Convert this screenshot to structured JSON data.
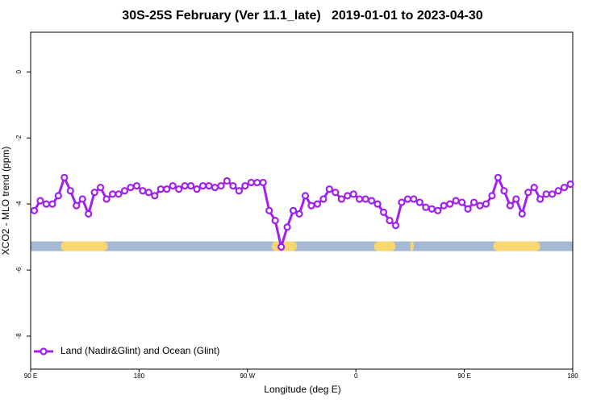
{
  "chart_data": {
    "type": "line",
    "title": "30S-25S February (Ver 11.1_late)   2019-01-01 to 2023-04-30",
    "x_label": "Longitude (deg E)",
    "y_label": "XCO2 - MLO trend (ppm)",
    "xlim": [
      90,
      540
    ],
    "ylim": [
      -9,
      1.2
    ],
    "xticks": [
      {
        "value": 90,
        "label": "90 E"
      },
      180,
      {
        "value": 270,
        "label": "90 W"
      },
      {
        "value": 360,
        "label": "0"
      },
      {
        "value": 450,
        "label": "90 E"
      },
      {
        "value": 540,
        "label": "180"
      }
    ],
    "yticks": [
      0,
      -2,
      -4,
      -6,
      -8
    ],
    "legend": "bottom-left",
    "x": [
      93,
      98,
      103,
      108,
      113,
      118,
      123,
      128,
      133,
      138,
      143,
      148,
      153,
      158,
      163,
      168,
      173,
      178,
      183,
      188,
      193,
      198,
      203,
      208,
      213,
      218,
      223,
      228,
      233,
      238,
      243,
      248,
      253,
      258,
      263,
      268,
      273,
      278,
      283,
      288,
      293,
      298,
      303,
      308,
      313,
      318,
      323,
      328,
      333,
      338,
      343,
      348,
      353,
      358,
      363,
      368,
      373,
      378,
      383,
      388,
      393,
      398,
      403,
      408,
      413,
      418,
      423,
      428,
      433,
      438,
      443,
      448,
      453,
      458,
      463,
      468,
      473,
      478,
      483,
      488,
      493,
      498,
      503,
      508,
      513,
      518,
      523,
      528,
      533,
      538
    ],
    "series": [
      {
        "name": "Land (Nadir&Glint) and Ocean (Glint)",
        "color": "#a020f0",
        "values": [
          -4.2,
          -3.9,
          -4.0,
          -4.0,
          -3.75,
          -3.2,
          -3.6,
          -4.05,
          -3.85,
          -4.3,
          -3.65,
          -3.5,
          -3.85,
          -3.7,
          -3.7,
          -3.6,
          -3.5,
          -3.45,
          -3.6,
          -3.65,
          -3.75,
          -3.55,
          -3.55,
          -3.45,
          -3.55,
          -3.45,
          -3.45,
          -3.55,
          -3.45,
          -3.45,
          -3.5,
          -3.45,
          -3.3,
          -3.45,
          -3.6,
          -3.45,
          -3.35,
          -3.35,
          -3.35,
          -4.2,
          -4.5,
          -5.3,
          -4.7,
          -4.2,
          -4.3,
          -3.75,
          -4.05,
          -4.0,
          -3.85,
          -3.55,
          -3.65,
          -3.85,
          -3.75,
          -3.7,
          -3.85,
          -3.85,
          -3.9,
          -4.0,
          -4.25,
          -4.5,
          -4.65,
          -3.95,
          -3.85,
          -3.85,
          -3.95,
          -4.1,
          -4.15,
          -4.2,
          -4.05,
          -4.0,
          -3.9,
          -3.95,
          -4.15,
          -3.95,
          -4.05,
          -4.0,
          -3.75,
          -3.2,
          -3.6,
          -4.05,
          -3.85,
          -4.3,
          -3.65,
          -3.5,
          -3.85,
          -3.7,
          -3.7,
          -3.6,
          -3.5,
          -3.4
        ]
      }
    ],
    "surface_band": {
      "y": -5.28,
      "ocean_color": "#a5b8d4",
      "land_color": "#f8d670",
      "land_segments": [
        [
          115,
          154
        ],
        [
          290,
          311
        ],
        [
          375,
          393
        ],
        [
          405,
          408
        ],
        [
          474,
          513
        ]
      ]
    }
  }
}
